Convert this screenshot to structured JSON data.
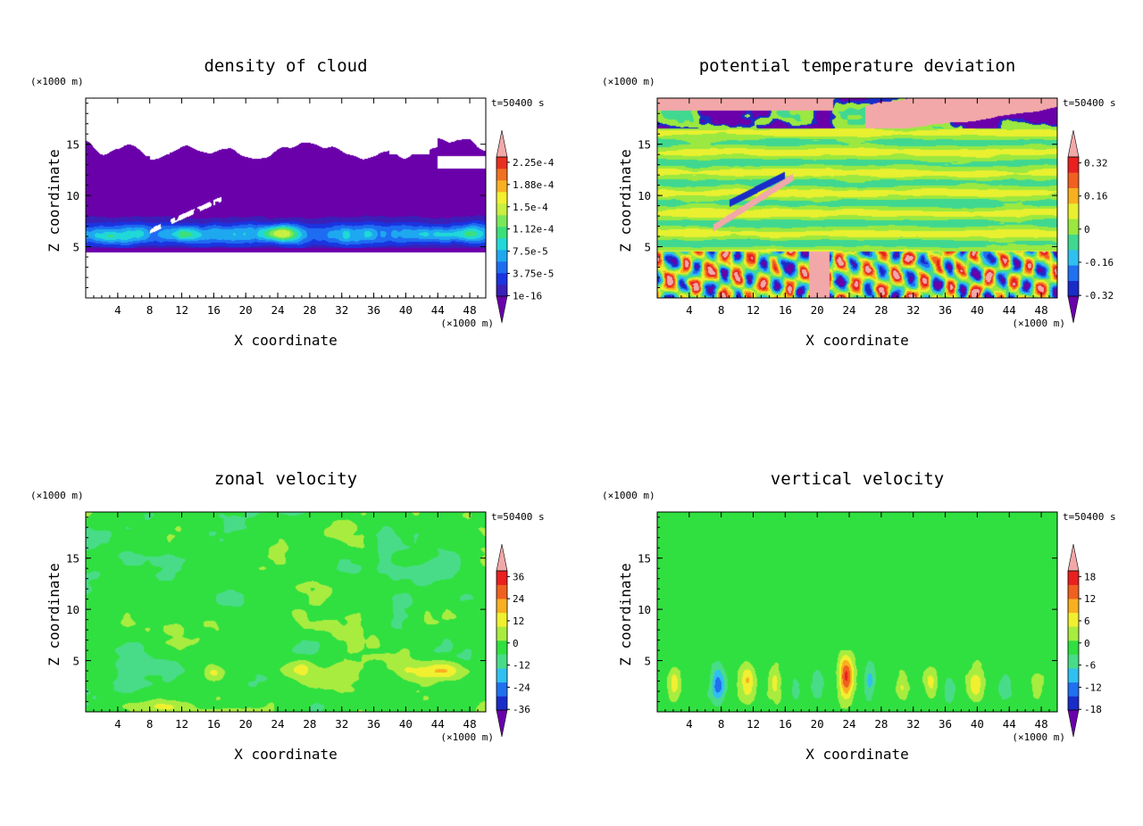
{
  "chart_data": [
    {
      "type": "heatmap",
      "title": "density of cloud",
      "xlabel": "X coordinate",
      "ylabel": "Z coordinate",
      "x_unit": "(×1000 m)",
      "y_unit": "(×1000 m)",
      "time_label": "t=50400 s",
      "xticks": [
        "4",
        "8",
        "12",
        "16",
        "20",
        "24",
        "28",
        "32",
        "36",
        "40",
        "44",
        "48"
      ],
      "yticks": [
        "5",
        "10",
        "15"
      ],
      "xlim": [
        0,
        50
      ],
      "ylim": [
        0,
        19.5
      ],
      "colorbar_labels": [
        "2.25e-4",
        "1.88e-4",
        "1.5e-4",
        "1.12e-4",
        "7.5e-5",
        "3.75e-5",
        "1e-16"
      ],
      "colorbar_colors": [
        "#6a00aa",
        "#3a1fb8",
        "#1a34e0",
        "#1e6cf2",
        "#1ea8f0",
        "#20d8d8",
        "#3ce07a",
        "#7ae85a",
        "#c8f040",
        "#f2f030",
        "#f8b020",
        "#f07020",
        "#e83020",
        "#f2a8a8"
      ],
      "field": {
        "kind": "cloud",
        "z_base": 4.4,
        "z_top": 15.9,
        "description_values": "cloud between z≈4.5 and z≈16"
      }
    },
    {
      "type": "heatmap",
      "title": "potential temperature deviation",
      "xlabel": "X coordinate",
      "ylabel": "Z coordinate",
      "x_unit": "(×1000 m)",
      "y_unit": "(×1000 m)",
      "time_label": "t=50400 s",
      "xticks": [
        "4",
        "8",
        "12",
        "16",
        "20",
        "24",
        "28",
        "32",
        "36",
        "40",
        "44",
        "48"
      ],
      "yticks": [
        "5",
        "10",
        "15"
      ],
      "xlim": [
        0,
        50
      ],
      "ylim": [
        0,
        19.5
      ],
      "colorbar_labels": [
        "0.32",
        "0.16",
        "0",
        "-0.16",
        "-0.32"
      ],
      "colorbar_colors": [
        "#6a00aa",
        "#1a2cc8",
        "#2070f0",
        "#30c0f0",
        "#40d890",
        "#9ae840",
        "#e8f030",
        "#f8b020",
        "#f06020",
        "#e82020",
        "#f2a8a8"
      ],
      "field": {
        "kind": "theta"
      }
    },
    {
      "type": "heatmap",
      "title": "zonal velocity",
      "xlabel": "X coordinate",
      "ylabel": "Z coordinate",
      "x_unit": "(×1000 m)",
      "y_unit": "(×1000 m)",
      "time_label": "t=50400 s",
      "xticks": [
        "4",
        "8",
        "12",
        "16",
        "20",
        "24",
        "28",
        "32",
        "36",
        "40",
        "44",
        "48"
      ],
      "yticks": [
        "5",
        "10",
        "15"
      ],
      "xlim": [
        0,
        50
      ],
      "ylim": [
        0,
        19.5
      ],
      "colorbar_labels": [
        "36",
        "24",
        "12",
        "0",
        "-12",
        "-24",
        "-36"
      ],
      "colorbar_colors": [
        "#6a00aa",
        "#1a2cc8",
        "#2070f0",
        "#30c0f0",
        "#48dc88",
        "#30e040",
        "#a8ec40",
        "#f0f030",
        "#f8b020",
        "#f06020",
        "#e82020",
        "#f2a8a8"
      ],
      "field": {
        "kind": "zonal"
      }
    },
    {
      "type": "heatmap",
      "title": "vertical velocity",
      "xlabel": "X coordinate",
      "ylabel": "Z coordinate",
      "x_unit": "(×1000 m)",
      "y_unit": "(×1000 m)",
      "time_label": "t=50400 s",
      "xticks": [
        "4",
        "8",
        "12",
        "16",
        "20",
        "24",
        "28",
        "32",
        "36",
        "40",
        "44",
        "48"
      ],
      "yticks": [
        "5",
        "10",
        "15"
      ],
      "xlim": [
        0,
        50
      ],
      "ylim": [
        0,
        19.5
      ],
      "colorbar_labels": [
        "18",
        "12",
        "6",
        "0",
        "-6",
        "-12",
        "-18"
      ],
      "colorbar_colors": [
        "#6a00aa",
        "#1a2cc8",
        "#2070f0",
        "#30c0f0",
        "#48dc88",
        "#30e040",
        "#a8ec40",
        "#f0f030",
        "#f8b020",
        "#f06020",
        "#e82020",
        "#f2a8a8"
      ],
      "field": {
        "kind": "vertical"
      }
    }
  ]
}
